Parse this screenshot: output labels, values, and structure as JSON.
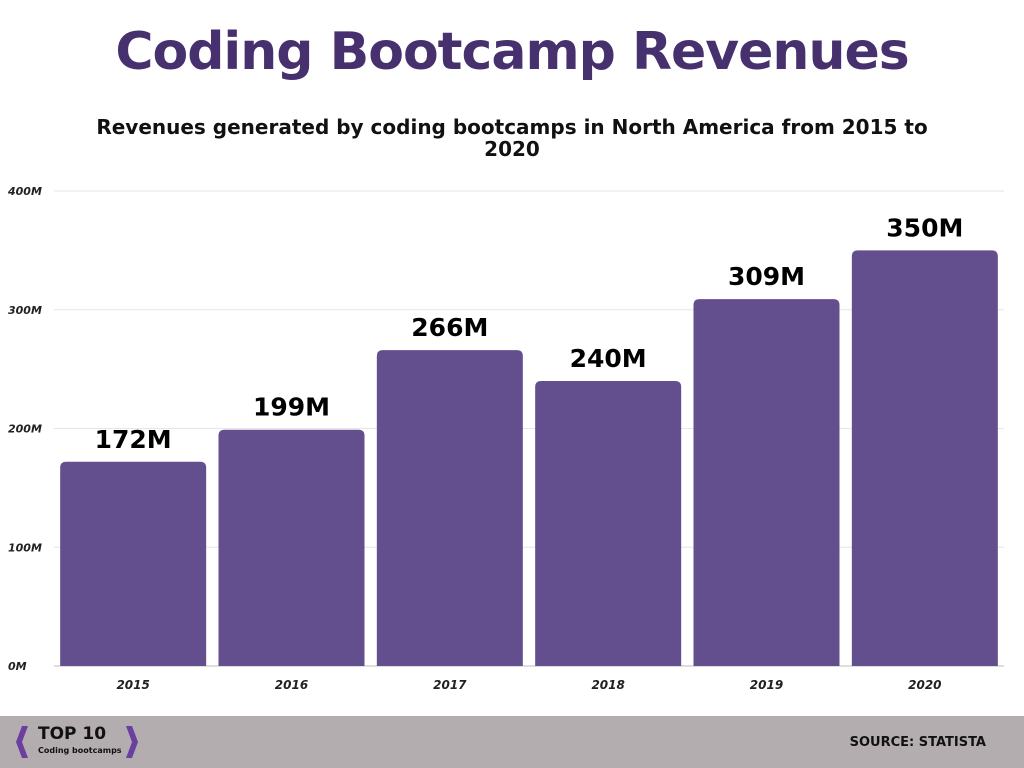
{
  "header": {
    "title": "Coding Bootcamp Revenues",
    "subtitle": "Revenues generated by coding bootcamps in North America from 2015 to 2020"
  },
  "footer": {
    "logo_text": "TOP 10",
    "logo_subtext": "Coding bootcamps",
    "source": "SOURCE: STATISTA"
  },
  "chart_data": {
    "type": "bar",
    "title": "Coding Bootcamp Revenues",
    "subtitle": "Revenues generated by coding bootcamps in North America from 2015 to 2020",
    "categories": [
      "2015",
      "2016",
      "2017",
      "2018",
      "2019",
      "2020"
    ],
    "values": [
      172,
      199,
      266,
      240,
      309,
      350
    ],
    "data_labels": [
      "172M",
      "199M",
      "266M",
      "240M",
      "309M",
      "350M"
    ],
    "ylim": [
      0,
      400
    ],
    "yticks": [
      0,
      100,
      200,
      300,
      400
    ],
    "ytick_labels": [
      "0M",
      "100M",
      "200M",
      "300M",
      "400M"
    ],
    "grid": true,
    "legend": "none",
    "bar_color": "#634f8d",
    "title_color": "#46306e"
  }
}
